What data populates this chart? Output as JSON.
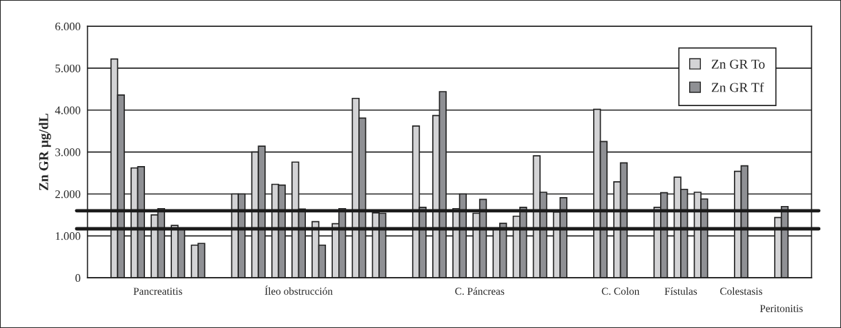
{
  "chart_data": {
    "type": "bar",
    "ylabel": "Zn GR µg/dL",
    "categories": [
      null,
      null,
      null,
      "Pancreatitis",
      null,
      null,
      null,
      null,
      null,
      null,
      "Íleo obstrucción",
      null,
      null,
      null,
      null,
      null,
      null,
      null,
      null,
      "C. Páncreas",
      null,
      null,
      null,
      null,
      null,
      null,
      "C. Colon",
      null,
      null,
      "Fístulas",
      null,
      null,
      "Colestasis",
      null,
      "Peritonitis",
      null
    ],
    "series": [
      {
        "name": "Zn GR To",
        "color": "#d3d3d5",
        "values": [
          null,
          5220,
          2620,
          1500,
          1250,
          780,
          null,
          2000,
          3000,
          2230,
          2760,
          1340,
          1290,
          4280,
          1550,
          null,
          3620,
          3870,
          1650,
          1540,
          1150,
          1470,
          2910,
          1570,
          null,
          4020,
          2290,
          null,
          1680,
          2400,
          2040,
          null,
          2540,
          null,
          1440,
          null
        ]
      },
      {
        "name": "Zn GR Tf",
        "color": "#8f9094",
        "values": [
          null,
          4360,
          2650,
          1650,
          1170,
          820,
          null,
          2000,
          3140,
          2210,
          1640,
          780,
          1650,
          3810,
          1540,
          null,
          1680,
          4440,
          2000,
          1870,
          1300,
          1680,
          2040,
          1910,
          null,
          3250,
          2740,
          null,
          2030,
          2110,
          1880,
          null,
          2670,
          null,
          1700,
          null
        ]
      }
    ],
    "ylim": [
      0,
      6000
    ],
    "yticks": [
      0,
      {
        "value": 1000,
        "label": "1.000"
      },
      {
        "value": 2000,
        "label": "2.000"
      },
      {
        "value": 3000,
        "label": "3.000"
      },
      {
        "value": 4000,
        "label": "4.000"
      },
      {
        "value": 5000,
        "label": "5.000"
      },
      {
        "value": 6000,
        "label": "6.000"
      }
    ],
    "ref_lines": [
      {
        "axis": "y",
        "value": 1600,
        "color": "#1a1a1a"
      },
      {
        "axis": "y",
        "value": 1170,
        "color": "#1a1a1a"
      }
    ],
    "grid": "y",
    "legend": "top right"
  }
}
